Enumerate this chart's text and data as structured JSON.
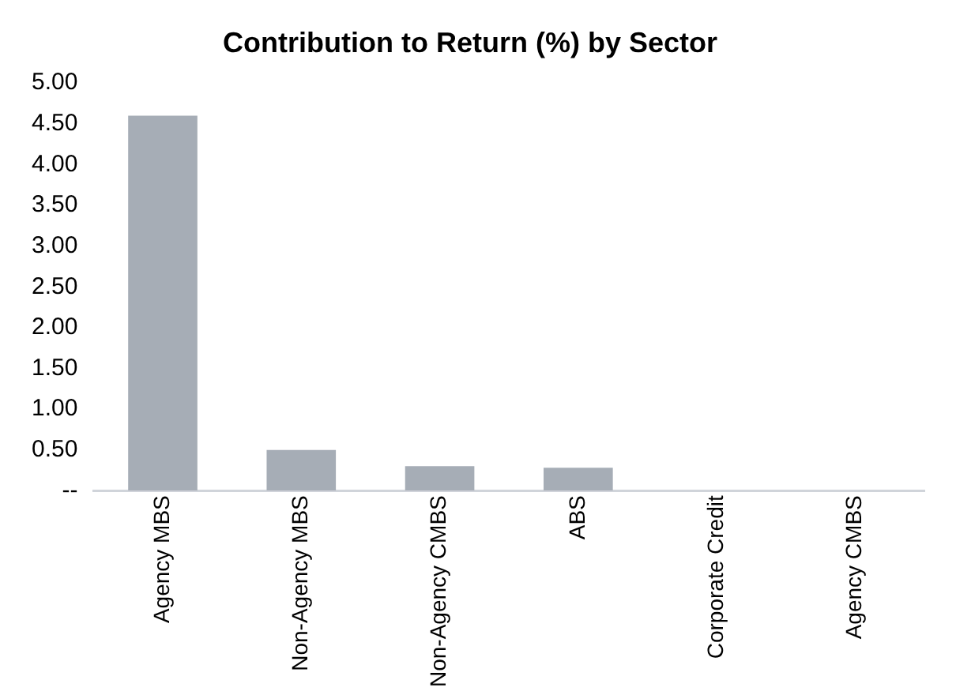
{
  "chart_data": {
    "type": "bar",
    "title": "Contribution to Return (%) by Sector",
    "categories": [
      "Agency MBS",
      "Non-Agency MBS",
      "Non-Agency CMBS",
      "ABS",
      "Corporate Credit",
      "Agency CMBS"
    ],
    "values": [
      4.6,
      0.5,
      0.3,
      0.28,
      0,
      0
    ],
    "color": "#a6adb6",
    "ylim": [
      0,
      5
    ],
    "yticks": [
      {
        "value": 0,
        "label": "--"
      },
      {
        "value": 0.5,
        "label": "0.50"
      },
      {
        "value": 1,
        "label": "1.00"
      },
      {
        "value": 1.5,
        "label": "1.50"
      },
      {
        "value": 2,
        "label": "2.00"
      },
      {
        "value": 2.5,
        "label": "2.50"
      },
      {
        "value": 3,
        "label": "3.00"
      },
      {
        "value": 3.5,
        "label": "3.50"
      },
      {
        "value": 4,
        "label": "4.00"
      },
      {
        "value": 4.5,
        "label": "4.50"
      },
      {
        "value": 5,
        "label": "5.00"
      }
    ],
    "grid": false,
    "legend": false
  }
}
